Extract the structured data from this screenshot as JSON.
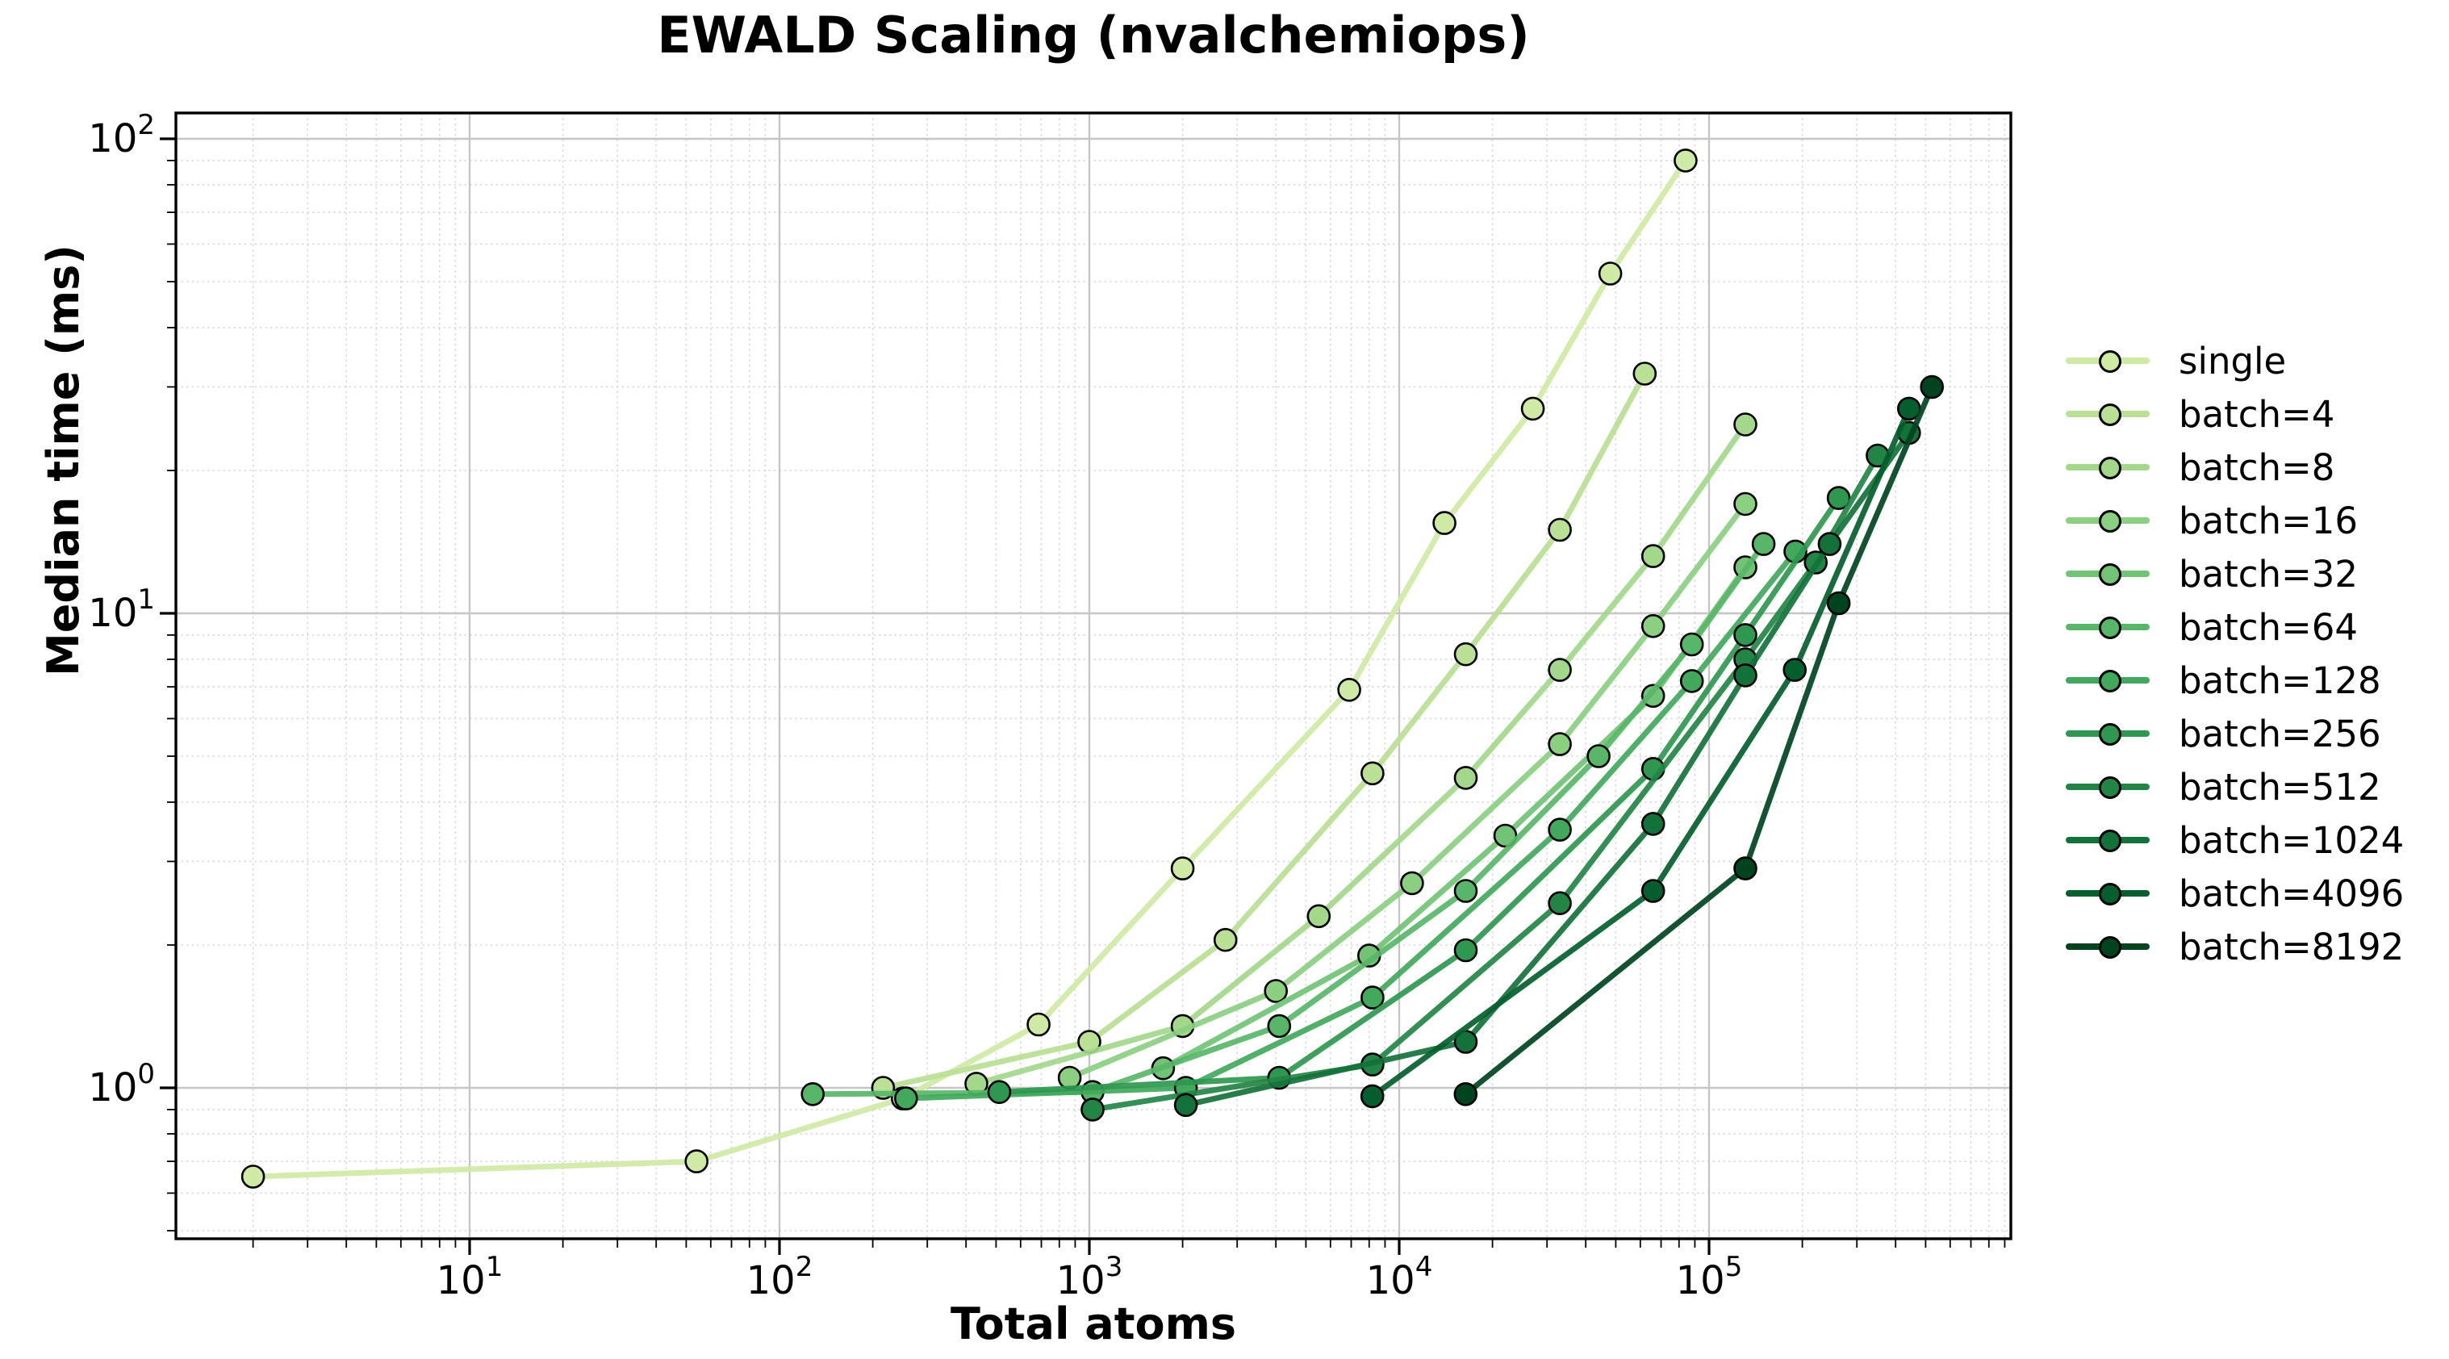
{
  "chart": {
    "title": "EWALD Scaling (nvalchemiops)",
    "xlabel": "Total atoms",
    "ylabel": "Median time (ms)"
  },
  "chart_data": {
    "type": "line",
    "title": "EWALD Scaling (nvalchemiops)",
    "xlabel": "Total atoms",
    "ylabel": "Median time (ms)",
    "x_scale": "log",
    "y_scale": "log",
    "xlim": [
      1.13,
      941000
    ],
    "ylim": [
      0.48,
      113
    ],
    "x_tick_exponents": [
      1,
      2,
      3,
      4,
      5
    ],
    "y_tick_exponents": [
      0,
      1,
      2
    ],
    "x_tick_labels": [
      "10¹",
      "10²",
      "10³",
      "10⁴",
      "10⁵"
    ],
    "y_tick_labels": [
      "10⁰",
      "10¹",
      "10²"
    ],
    "grid": true,
    "legend_position": "right",
    "series": [
      {
        "name": "single",
        "color": "#cfeaa4",
        "points": [
          [
            2,
            0.65
          ],
          [
            54,
            0.7
          ],
          [
            250,
            0.95
          ],
          [
            686,
            1.36
          ],
          [
            2000,
            2.9
          ],
          [
            6900,
            6.9
          ],
          [
            14000,
            15.5
          ],
          [
            27000,
            27
          ],
          [
            48000,
            52
          ],
          [
            84000,
            90
          ]
        ]
      },
      {
        "name": "batch=4",
        "color": "#b9e094",
        "points": [
          [
            216,
            1.0
          ],
          [
            1000,
            1.25
          ],
          [
            2750,
            2.05
          ],
          [
            8200,
            4.6
          ],
          [
            16400,
            8.2
          ],
          [
            33000,
            15
          ],
          [
            62000,
            32
          ]
        ]
      },
      {
        "name": "batch=8",
        "color": "#a3d88b",
        "points": [
          [
            432,
            1.02
          ],
          [
            2000,
            1.35
          ],
          [
            5500,
            2.3
          ],
          [
            16400,
            4.5
          ],
          [
            33000,
            7.6
          ],
          [
            66000,
            13.2
          ],
          [
            131000,
            25
          ]
        ]
      },
      {
        "name": "batch=16",
        "color": "#8bcf81",
        "points": [
          [
            864,
            1.05
          ],
          [
            4000,
            1.6
          ],
          [
            11000,
            2.7
          ],
          [
            33000,
            5.3
          ],
          [
            66000,
            9.4
          ],
          [
            131000,
            17
          ]
        ]
      },
      {
        "name": "batch=32",
        "color": "#72c375",
        "points": [
          [
            1730,
            1.1
          ],
          [
            8000,
            1.9
          ],
          [
            22000,
            3.4
          ],
          [
            66000,
            6.7
          ],
          [
            131000,
            12.5
          ]
        ]
      },
      {
        "name": "batch=64",
        "color": "#58b668",
        "points": [
          [
            128,
            0.97
          ],
          [
            1024,
            0.98
          ],
          [
            4100,
            1.35
          ],
          [
            16400,
            2.6
          ],
          [
            44000,
            5.0
          ],
          [
            88000,
            8.6
          ],
          [
            150000,
            14
          ]
        ]
      },
      {
        "name": "batch=128",
        "color": "#41a85c",
        "points": [
          [
            256,
            0.95
          ],
          [
            2048,
            1.0
          ],
          [
            8200,
            1.55
          ],
          [
            33000,
            3.5
          ],
          [
            88000,
            7.2
          ],
          [
            190000,
            13.5
          ]
        ]
      },
      {
        "name": "batch=256",
        "color": "#2f9850",
        "points": [
          [
            512,
            0.98
          ],
          [
            4100,
            1.05
          ],
          [
            16400,
            1.95
          ],
          [
            66000,
            4.7
          ],
          [
            131000,
            9.0
          ],
          [
            262000,
            17.5
          ]
        ]
      },
      {
        "name": "batch=512",
        "color": "#228545",
        "points": [
          [
            1024,
            0.9
          ],
          [
            8200,
            1.12
          ],
          [
            33000,
            2.45
          ],
          [
            131000,
            8.0
          ],
          [
            221000,
            12.8
          ],
          [
            350000,
            21.5
          ]
        ]
      },
      {
        "name": "batch=1024",
        "color": "#13723a",
        "points": [
          [
            2048,
            0.92
          ],
          [
            16400,
            1.25
          ],
          [
            66000,
            3.6
          ],
          [
            131000,
            7.4
          ],
          [
            245000,
            14
          ],
          [
            442000,
            24
          ]
        ]
      },
      {
        "name": "batch=4096",
        "color": "#045e2d",
        "points": [
          [
            8192,
            0.96
          ],
          [
            66000,
            2.6
          ],
          [
            189000,
            7.6
          ],
          [
            442000,
            27
          ]
        ]
      },
      {
        "name": "batch=8192",
        "color": "#00441f",
        "points": [
          [
            16384,
            0.97
          ],
          [
            131000,
            2.9
          ],
          [
            262000,
            10.5
          ],
          [
            524000,
            30
          ]
        ]
      }
    ]
  }
}
